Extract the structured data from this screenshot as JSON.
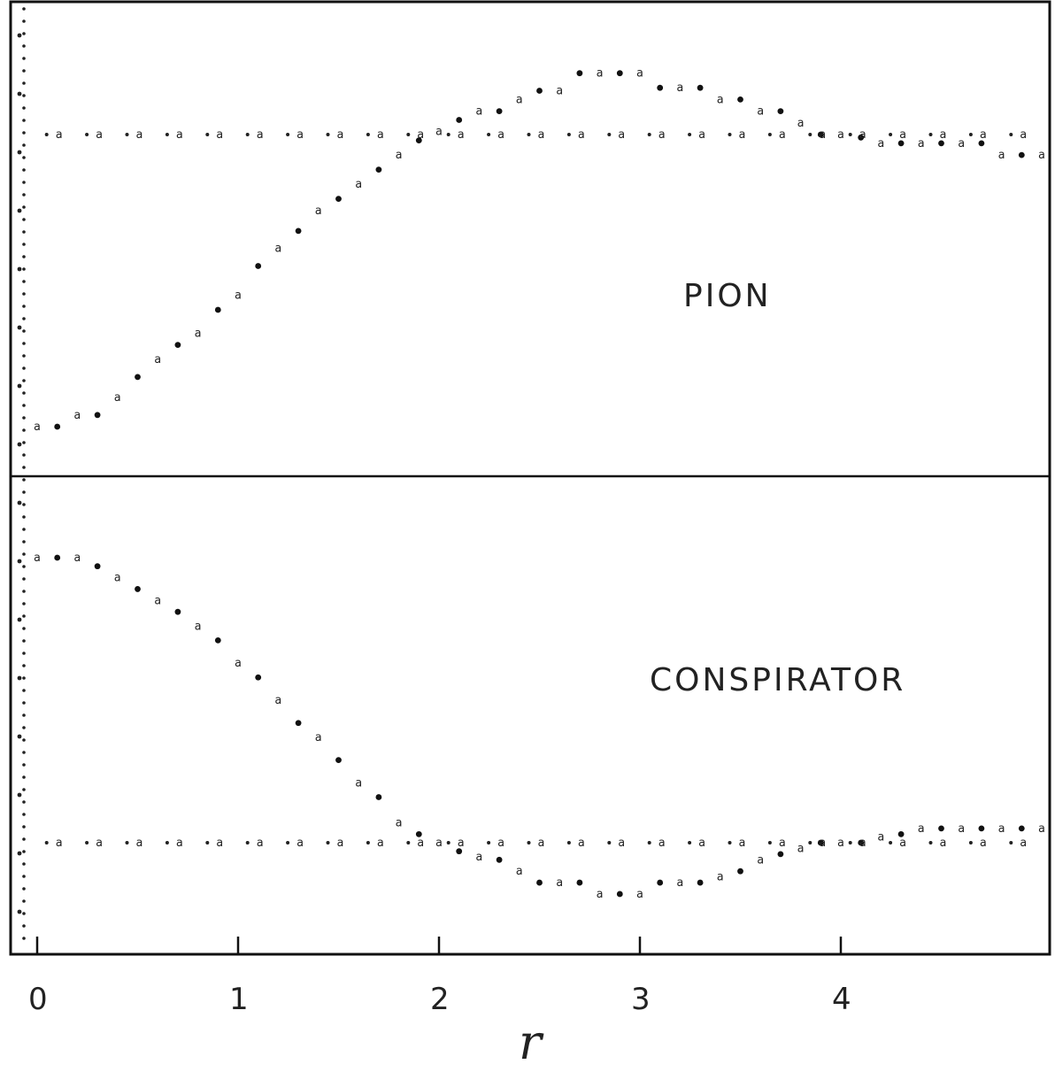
{
  "chart_data": [
    {
      "type": "scatter",
      "panel_label": "PION",
      "xlim": [
        -0.1,
        5.0
      ],
      "xticks": [
        0,
        1,
        2,
        3,
        4
      ],
      "xtick_labels": [
        "0",
        "1",
        "2",
        "3",
        "4"
      ],
      "xlabel": "r",
      "baseline": 0.0,
      "series": [
        {
          "marker": "star-and-a",
          "x": [
            0.0,
            0.1,
            0.2,
            0.3,
            0.4,
            0.5,
            0.6,
            0.7,
            0.8,
            0.9,
            1.0,
            1.1,
            1.2,
            1.3,
            1.4,
            1.5,
            1.6,
            1.7,
            1.8,
            1.9,
            2.0,
            2.1,
            2.2,
            2.3,
            2.4,
            2.5,
            2.6,
            2.7,
            2.8,
            2.9,
            3.0,
            3.1,
            3.2,
            3.3,
            3.4,
            3.5,
            3.6,
            3.7,
            3.8,
            3.9,
            4.0,
            4.1,
            4.2,
            4.3,
            4.4,
            4.5,
            4.6,
            4.7,
            4.8,
            4.9,
            5.0
          ],
          "y": [
            -1.0,
            -1.0,
            -0.96,
            -0.96,
            -0.9,
            -0.83,
            -0.77,
            -0.72,
            -0.68,
            -0.6,
            -0.55,
            -0.45,
            -0.39,
            -0.33,
            -0.26,
            -0.22,
            -0.17,
            -0.12,
            -0.07,
            -0.02,
            0.01,
            0.05,
            0.08,
            0.08,
            0.12,
            0.15,
            0.15,
            0.21,
            0.21,
            0.21,
            0.21,
            0.16,
            0.16,
            0.16,
            0.12,
            0.12,
            0.08,
            0.08,
            0.04,
            0.0,
            0.0,
            -0.01,
            -0.03,
            -0.03,
            -0.03,
            -0.03,
            -0.03,
            -0.03,
            -0.07,
            -0.07,
            -0.07
          ]
        },
        {
          "marker": "dot-and-a",
          "x": [
            0.1,
            0.3,
            0.5,
            0.7,
            0.9,
            1.1,
            1.3,
            1.5,
            1.7,
            1.9,
            2.1,
            2.3,
            2.5,
            2.7,
            2.9,
            3.1,
            3.3,
            3.5,
            3.7,
            3.9,
            4.1,
            4.3,
            4.5,
            4.7,
            4.9
          ],
          "y": [
            0.0,
            0.0,
            0.0,
            0.0,
            0.0,
            0.0,
            0.0,
            0.0,
            0.0,
            0.0,
            0.0,
            0.0,
            0.0,
            0.0,
            0.0,
            0.0,
            0.0,
            0.0,
            0.0,
            0.0,
            0.0,
            0.0,
            0.0,
            0.0,
            0.0
          ]
        }
      ]
    },
    {
      "type": "scatter",
      "panel_label": "CONSPIRATOR",
      "xlim": [
        -0.1,
        5.0
      ],
      "xticks": [
        0,
        1,
        2,
        3,
        4
      ],
      "xtick_labels": [
        "0",
        "1",
        "2",
        "3",
        "4"
      ],
      "xlabel": "r",
      "baseline": 0.0,
      "series": [
        {
          "marker": "star-and-a",
          "x": [
            0.0,
            0.1,
            0.2,
            0.3,
            0.4,
            0.5,
            0.6,
            0.7,
            0.8,
            0.9,
            1.0,
            1.1,
            1.2,
            1.3,
            1.4,
            1.5,
            1.6,
            1.7,
            1.8,
            1.9,
            2.0,
            2.1,
            2.2,
            2.3,
            2.4,
            2.5,
            2.6,
            2.7,
            2.8,
            2.9,
            3.0,
            3.1,
            3.2,
            3.3,
            3.4,
            3.5,
            3.6,
            3.7,
            3.8,
            3.9,
            4.0,
            4.1,
            4.2,
            4.3,
            4.4,
            4.5,
            4.6,
            4.7,
            4.8,
            4.9,
            5.0
          ],
          "y": [
            1.0,
            1.0,
            1.0,
            0.97,
            0.93,
            0.89,
            0.85,
            0.81,
            0.76,
            0.71,
            0.63,
            0.58,
            0.5,
            0.42,
            0.37,
            0.29,
            0.21,
            0.16,
            0.07,
            0.03,
            0.0,
            -0.03,
            -0.05,
            -0.06,
            -0.1,
            -0.14,
            -0.14,
            -0.14,
            -0.18,
            -0.18,
            -0.18,
            -0.14,
            -0.14,
            -0.14,
            -0.12,
            -0.1,
            -0.06,
            -0.04,
            -0.02,
            0.0,
            0.0,
            0.0,
            0.02,
            0.03,
            0.05,
            0.05,
            0.05,
            0.05,
            0.05,
            0.05,
            0.05
          ]
        },
        {
          "marker": "dot-and-a",
          "x": [
            0.1,
            0.3,
            0.5,
            0.7,
            0.9,
            1.1,
            1.3,
            1.5,
            1.7,
            1.9,
            2.1,
            2.3,
            2.5,
            2.7,
            2.9,
            3.1,
            3.3,
            3.5,
            3.7,
            3.9,
            4.1,
            4.3,
            4.5,
            4.7,
            4.9
          ],
          "y": [
            0.0,
            0.0,
            0.0,
            0.0,
            0.0,
            0.0,
            0.0,
            0.0,
            0.0,
            0.0,
            0.0,
            0.0,
            0.0,
            0.0,
            0.0,
            0.0,
            0.0,
            0.0,
            0.0,
            0.0,
            0.0,
            0.0,
            0.0,
            0.0,
            0.0
          ]
        }
      ]
    }
  ]
}
